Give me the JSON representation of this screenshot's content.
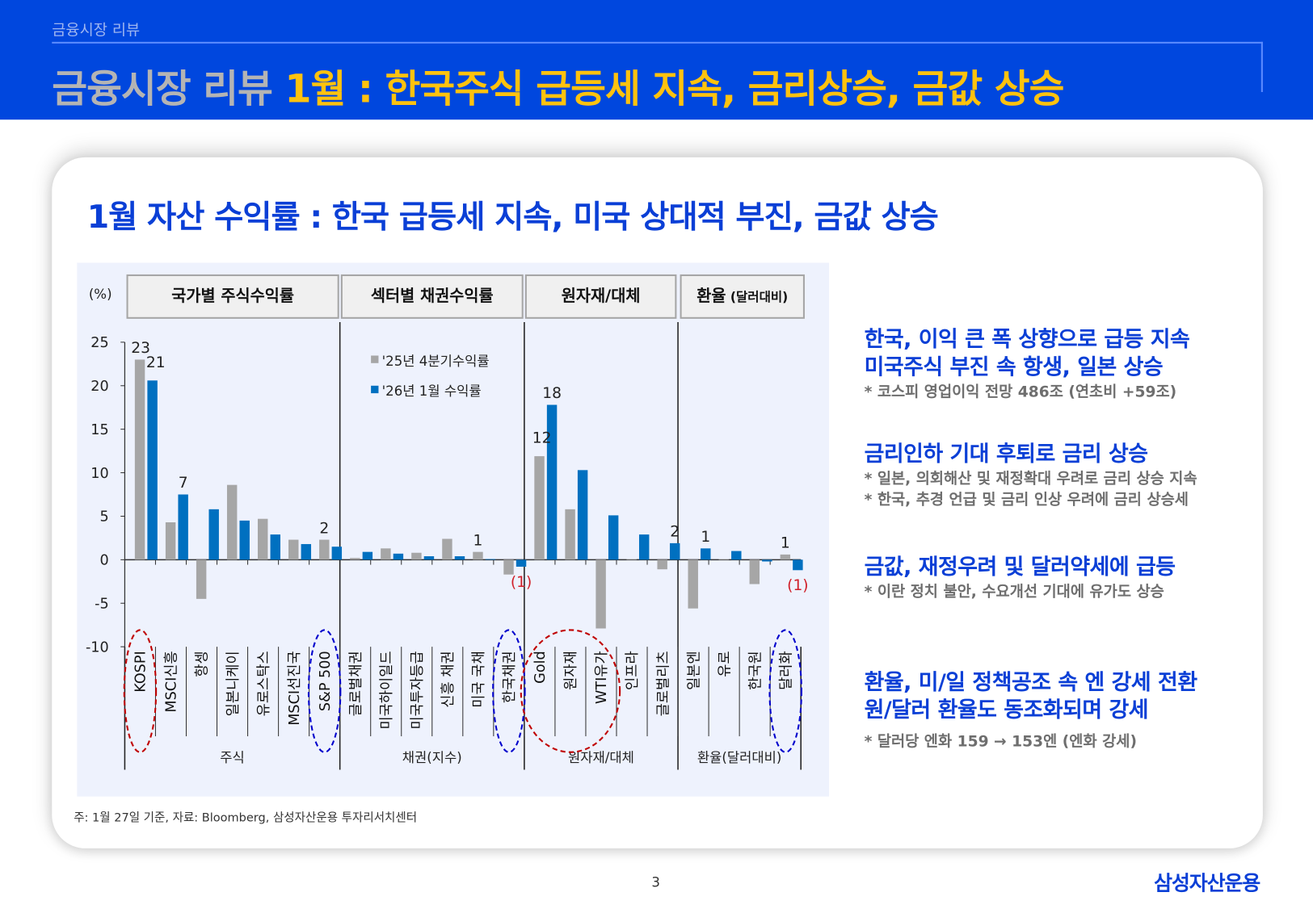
{
  "header": {
    "breadcrumb": "금융시장 리뷰",
    "title_prefix": "금융시장 리뷰",
    "title_main": "1월 : 한국주식 급등세 지속, 금리상승, 금값 상승"
  },
  "subtitle": "1월 자산 수익률 : 한국 급등세 지속, 미국 상대적 부진, 금값 상승",
  "chart_data": {
    "type": "bar",
    "unit_label": "(%)",
    "ylim": [
      -10,
      25
    ],
    "yticks": [
      25,
      20,
      15,
      10,
      5,
      0,
      -5,
      -10
    ],
    "group_headers": [
      {
        "label": "국가별 주식수익률",
        "sub": ""
      },
      {
        "label": "섹터별 채권수익률",
        "sub": ""
      },
      {
        "label": "원자재/대체",
        "sub": ""
      },
      {
        "label": "환율",
        "sub": "(달러대비)"
      }
    ],
    "groups": [
      {
        "label": "주식",
        "count": 7
      },
      {
        "label": "채권(지수)",
        "count": 6
      },
      {
        "label": "원자재/대체",
        "count": 5
      },
      {
        "label": "환율(달러대비)",
        "count": 4
      }
    ],
    "categories": [
      "KOSPI",
      "MSCI신흥",
      "항셍",
      "일본니케이",
      "유로스탁스",
      "MSCI선진국",
      "S&P 500",
      "글로벌채권",
      "미국하이일드",
      "미국투자등급",
      "신흥 채권",
      "미국 국채",
      "한국채권",
      "Gold",
      "원자재",
      "WTI유가",
      "인프라",
      "글로벌리츠",
      "일본엔",
      "유로",
      "한국원",
      "달러화"
    ],
    "series": [
      {
        "name": "'25년 4분기수익률",
        "color": "#a6a6a6",
        "values": [
          23.0,
          4.3,
          -4.5,
          8.6,
          4.7,
          2.3,
          2.3,
          0.2,
          1.3,
          0.8,
          2.4,
          0.9,
          -1.7,
          11.9,
          5.8,
          -7.9,
          0.0,
          -1.1,
          -5.6,
          0.05,
          -2.8,
          0.6
        ]
      },
      {
        "name": "'26년 1월 수익률",
        "color": "#0070c0",
        "values": [
          20.6,
          7.5,
          5.8,
          4.5,
          2.9,
          1.8,
          1.5,
          0.9,
          0.7,
          0.4,
          0.4,
          0.05,
          -0.8,
          17.8,
          10.3,
          5.1,
          2.9,
          1.9,
          1.3,
          1.0,
          -0.2,
          -1.2
        ]
      }
    ],
    "data_labels": [
      {
        "category": 0,
        "series": 0,
        "text": "23"
      },
      {
        "category": 0,
        "series": 1,
        "text": "21"
      },
      {
        "category": 1,
        "series": 1,
        "text": "7"
      },
      {
        "category": 6,
        "series": 0,
        "text": "2"
      },
      {
        "category": 11,
        "series": 0,
        "text": "1"
      },
      {
        "category": 12,
        "series": 1,
        "text": "(1)",
        "color": "#d0202a"
      },
      {
        "category": 13,
        "series": 1,
        "text": "18"
      },
      {
        "category": 13,
        "series": 0,
        "text": "12"
      },
      {
        "category": 17,
        "series": 1,
        "text": "2"
      },
      {
        "category": 18,
        "series": 1,
        "text": "1"
      },
      {
        "category": 21,
        "series": 0,
        "text": "1"
      },
      {
        "category": 21,
        "series": 1,
        "text": "(1)",
        "color": "#d0202a"
      }
    ],
    "highlights": [
      {
        "categories": [
          0
        ],
        "color": "#c00000"
      },
      {
        "categories": [
          6
        ],
        "color": "#0000cc"
      },
      {
        "categories": [
          12
        ],
        "color": "#0000cc"
      },
      {
        "categories": [
          13,
          14,
          15
        ],
        "color": "#c00000"
      },
      {
        "categories": [
          21
        ],
        "color": "#0000cc"
      }
    ],
    "legend_position": "top-center",
    "grid": false
  },
  "footnote": "주: 1월 27일 기준, 자료: Bloomberg, 삼성자산운용 투자리서치센터",
  "side": [
    {
      "heads": [
        "한국, 이익 큰 폭 상향으로 급등 지속",
        "미국주식 부진 속 항생, 일본 상승"
      ],
      "notes": [
        "* 코스피 영업이익 전망 486조 (연초비 +59조)"
      ]
    },
    {
      "heads": [
        "금리인하 기대 후퇴로 금리 상승"
      ],
      "notes": [
        "* 일본, 의회해산 및 재정확대 우려로 금리 상승 지속",
        "* 한국, 추경 언급 및 금리 인상 우려에 금리 상승세"
      ]
    },
    {
      "heads": [
        "금값, 재정우려 및 달러약세에 급등"
      ],
      "notes": [
        "* 이란 정치 불안, 수요개선 기대에 유가도 상승"
      ]
    },
    {
      "heads": [
        "환율, 미/일 정책공조 속 엔 강세 전환",
        "원/달러 환율도 동조화되며 강세"
      ],
      "notes": [
        " * 달러당 엔화 159 → 153엔 (엔화 강세)"
      ]
    }
  ],
  "page_number": "3",
  "logo_text": "삼성자산운용"
}
